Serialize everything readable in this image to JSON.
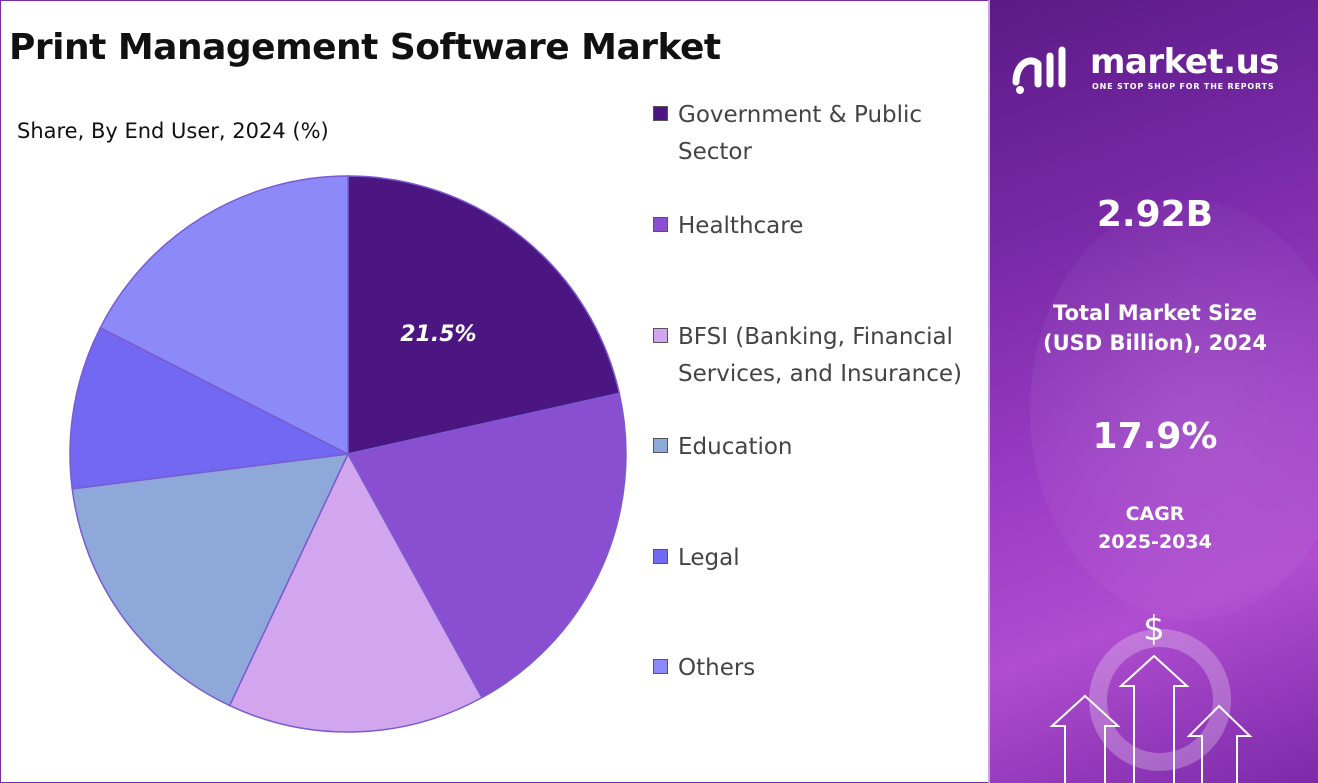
{
  "title": "Print Management Software Market",
  "chart_data": {
    "type": "pie",
    "subtitle": "Share, By End User, 2024 (%)",
    "categories": [
      "Government & Public Sector",
      "Healthcare",
      "BFSI (Banking, Financial Services, and Insurance)",
      "Education",
      "Legal",
      "Others"
    ],
    "values": [
      21.5,
      20.5,
      15.0,
      16.0,
      9.5,
      17.5
    ],
    "colors": [
      "#4c1682",
      "#8a4fd1",
      "#d2a6ee",
      "#8fa8da",
      "#7268f2",
      "#8c8af8"
    ],
    "data_labels": [
      "21.5%",
      "",
      "",
      "",
      "",
      ""
    ],
    "start_angle_deg": 0,
    "direction": "clockwise",
    "legend_position": "right"
  },
  "legend": {
    "items": [
      {
        "label": "Government & Public Sector",
        "color": "#4c1682"
      },
      {
        "label": "Healthcare",
        "color": "#8a4fd1"
      },
      {
        "label": "BFSI (Banking, Financial Services, and Insurance)",
        "color": "#d2a6ee"
      },
      {
        "label": "Education",
        "color": "#8fa8da"
      },
      {
        "label": "Legal",
        "color": "#7268f2"
      },
      {
        "label": "Others",
        "color": "#8c8af8"
      }
    ]
  },
  "side_panel": {
    "logo_text": "market.us",
    "logo_tagline": "ONE STOP SHOP FOR THE REPORTS",
    "market_size_value": "2.92B",
    "market_size_caption_line1": "Total Market Size",
    "market_size_caption_line2": "(USD Billion), 2024",
    "cagr_value": "17.9%",
    "cagr_caption_line1": "CAGR",
    "cagr_caption_line2": "2025-2034",
    "currency_symbol": "$",
    "background_color": "#8a35b8"
  }
}
